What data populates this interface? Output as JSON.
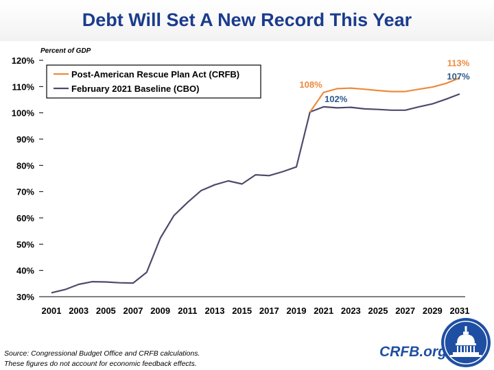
{
  "header": {
    "title": "Debt Will Set A New Record This Year"
  },
  "chart_data": {
    "type": "line",
    "title": "Debt Will Set A New Record This Year",
    "ylabel": "Percent of GDP",
    "xlabel": "",
    "xlim": [
      2001,
      2031
    ],
    "ylim": [
      30,
      120
    ],
    "xticks": [
      2001,
      2003,
      2005,
      2007,
      2009,
      2011,
      2013,
      2015,
      2017,
      2019,
      2021,
      2023,
      2025,
      2027,
      2029,
      2031
    ],
    "yticks": [
      30,
      40,
      50,
      60,
      70,
      80,
      90,
      100,
      110,
      120
    ],
    "ytick_suffix": "%",
    "legend_position": "top-left",
    "series": [
      {
        "name": "February 2021 Baseline (CBO)",
        "color": "#4b4a6b",
        "points": [
          [
            2001,
            31.5
          ],
          [
            2002,
            32.7
          ],
          [
            2003,
            34.7
          ],
          [
            2004,
            35.7
          ],
          [
            2005,
            35.6
          ],
          [
            2006,
            35.3
          ],
          [
            2007,
            35.2
          ],
          [
            2008,
            39.3
          ],
          [
            2009,
            52.3
          ],
          [
            2010,
            60.9
          ],
          [
            2011,
            65.9
          ],
          [
            2012,
            70.4
          ],
          [
            2013,
            72.6
          ],
          [
            2014,
            74.1
          ],
          [
            2015,
            72.9
          ],
          [
            2016,
            76.4
          ],
          [
            2017,
            76.1
          ],
          [
            2018,
            77.6
          ],
          [
            2019,
            79.4
          ],
          [
            2020,
            100.3
          ],
          [
            2021,
            102.3
          ],
          [
            2022,
            101.9
          ],
          [
            2023,
            102.1
          ],
          [
            2024,
            101.5
          ],
          [
            2025,
            101.3
          ],
          [
            2026,
            101.0
          ],
          [
            2027,
            101.0
          ],
          [
            2028,
            102.3
          ],
          [
            2029,
            103.4
          ],
          [
            2030,
            105.2
          ],
          [
            2031,
            107.2
          ]
        ]
      },
      {
        "name": "Post-American Rescue Plan Act (CRFB)",
        "color": "#ed8a3b",
        "points": [
          [
            2020,
            100.3
          ],
          [
            2021,
            107.8
          ],
          [
            2022,
            109.2
          ],
          [
            2023,
            109.4
          ],
          [
            2024,
            109.0
          ],
          [
            2025,
            108.5
          ],
          [
            2026,
            108.1
          ],
          [
            2027,
            108.1
          ],
          [
            2028,
            109.0
          ],
          [
            2029,
            109.8
          ],
          [
            2030,
            111.2
          ],
          [
            2031,
            113.3
          ]
        ]
      }
    ],
    "annotations": [
      {
        "text": "108%",
        "x": 2021,
        "y": 107.8,
        "color": "#ed8a3b"
      },
      {
        "text": "102%",
        "x": 2021,
        "y": 102.3,
        "color": "#2e5a8a"
      },
      {
        "text": "113%",
        "x": 2031,
        "y": 113.3,
        "color": "#ed8a3b"
      },
      {
        "text": "107%",
        "x": 2031,
        "y": 107.2,
        "color": "#2e5a8a"
      }
    ]
  },
  "footer": {
    "source": "Source: Congressional Budget Office and CRFB calculations.",
    "note": "These figures do not account for economic feedback effects.",
    "site": "CRFB.org",
    "logo_icon": "capitol-dome-icon"
  }
}
